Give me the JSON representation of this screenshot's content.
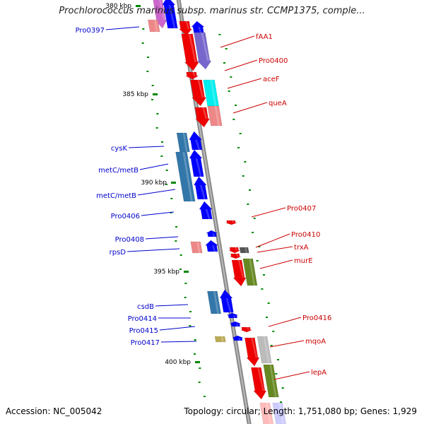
{
  "title": "Prochlorococcus marinus subsp. marinus str. CCMP1375, comple...",
  "accession": "Accession: NC_005042",
  "summary": "Topology: circular; Length: 1,751,080 bp; Genes: 1,929",
  "colors": {
    "backbone": "#888888",
    "left_labels": "#0000cc",
    "right_labels": "#cc0000",
    "tick_marks": "#008800",
    "scale_text": "#000000"
  },
  "scale_labels": [
    "380 kbp",
    "385 kbp",
    "390 kbp",
    "395 kbp",
    "400 kbp"
  ],
  "left_genes": [
    "Pro0397",
    "cysK",
    "metC/metB",
    "metC/metB",
    "Pro0406",
    "Pro0408",
    "rpsD",
    "csdB",
    "Pro0414",
    "Pro0415",
    "Pro0417"
  ],
  "right_genes": [
    "fAA1",
    "Pro0400",
    "aceF",
    "queA",
    "Pro0407",
    "Pro0410",
    "trxA",
    "murE",
    "Pro0416",
    "mqoA",
    "lepA"
  ]
}
